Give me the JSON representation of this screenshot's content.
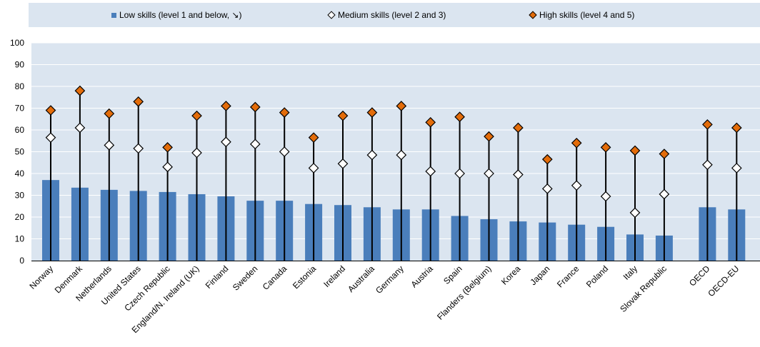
{
  "colors": {
    "low": "#4a7ebb",
    "medium": "#ffffff",
    "high": "#e36c0a",
    "plot_background": "#dbe5f0",
    "legend_background": "#dbe5f0",
    "gridline": "#ffffff",
    "whisker": "#000000"
  },
  "chart_data": {
    "type": "bar",
    "title": "",
    "xlabel": "",
    "ylabel": "",
    "ylim": [
      0,
      100
    ],
    "yticks": [
      0,
      10,
      20,
      30,
      40,
      50,
      60,
      70,
      80,
      90,
      100
    ],
    "grid": true,
    "legend_position": "top",
    "categories": [
      "Norway",
      "Denmark",
      "Netherlands",
      "United States",
      "Czech Republic",
      "England/N. Ireland (UK)",
      "Finland",
      "Sweden",
      "Canada",
      "Estonia",
      "Ireland",
      "Australia",
      "Germany",
      "Austria",
      "Spain",
      "Flanders (Belgium)",
      "Korea",
      "Japan",
      "France",
      "Poland",
      "Italy",
      "Slovak Republic",
      "OECD",
      "OECD-EU"
    ],
    "series": [
      {
        "name": "Low skills (level 1 and below, ↘)",
        "type": "bar",
        "values": [
          37,
          33.5,
          32.5,
          32,
          31.5,
          30.5,
          29.5,
          27.5,
          27.5,
          26,
          25.5,
          24.5,
          23.5,
          23.5,
          20.5,
          19,
          18,
          17.5,
          16.5,
          15.5,
          12,
          11.5,
          24.5,
          23.5
        ]
      },
      {
        "name": "Medium skills (level 2 and 3)",
        "type": "marker-diamond",
        "values": [
          56.5,
          61,
          53,
          51.5,
          43,
          49.5,
          54.5,
          53.5,
          50,
          42.5,
          44.5,
          48.5,
          48.5,
          41,
          40,
          40,
          39.5,
          33,
          34.5,
          29.5,
          22,
          30.5,
          44,
          42.5
        ]
      },
      {
        "name": "High skills (level 4 and 5)",
        "type": "marker-diamond",
        "values": [
          69,
          78,
          67.5,
          73,
          52,
          66.5,
          71,
          70.5,
          68,
          56.5,
          66.5,
          68,
          71,
          63.5,
          66,
          57,
          61,
          46.5,
          54,
          52,
          50.5,
          49,
          62.5,
          61
        ]
      }
    ]
  }
}
